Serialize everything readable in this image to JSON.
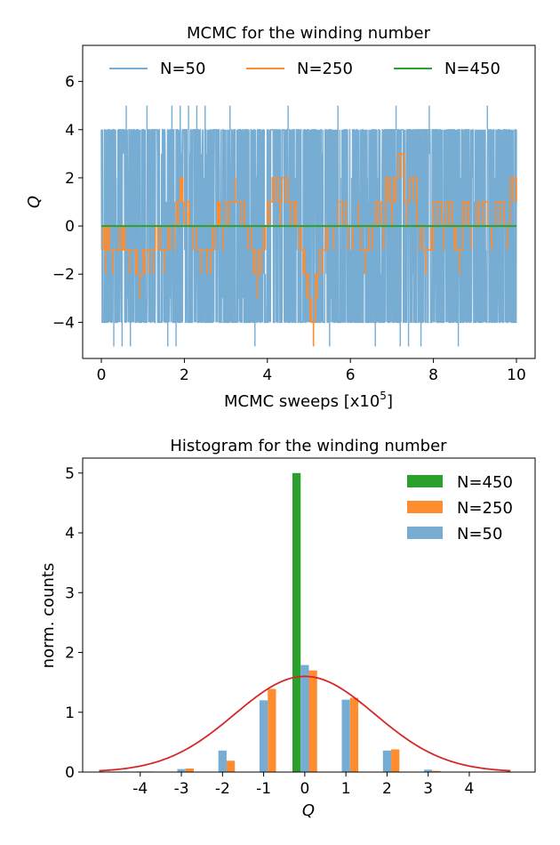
{
  "chart_data": [
    {
      "type": "line",
      "title": "MCMC for the winding number",
      "xlabel": "MCMC sweeps [x10^5]",
      "xlabel_text": "MCMC sweeps [x10",
      "xlabel_exp": "5",
      "xlabel_close": "]",
      "ylabel": "Q",
      "xlim": [
        -0.45,
        10.45
      ],
      "ylim": [
        -5.5,
        7.5
      ],
      "xticks": [
        0,
        2,
        4,
        6,
        8,
        10
      ],
      "xtick_labels": [
        "0",
        "2",
        "4",
        "6",
        "8",
        "10"
      ],
      "yticks": [
        -4,
        -2,
        0,
        2,
        4,
        6
      ],
      "ytick_labels": [
        "−4",
        "−2",
        "0",
        "2",
        "4",
        "6"
      ],
      "legend_position": "top (horizontal)",
      "series": [
        {
          "name": "N=50",
          "color": "#77acd3",
          "range": [
            -3,
            4
          ],
          "spikes_high": [
            0.6,
            1.1,
            1.7,
            1.9,
            2.1,
            2.3,
            2.5,
            3.1,
            4.5,
            5.7,
            7.1,
            7.9,
            9.3
          ],
          "spikes_low": [
            0.3,
            0.5,
            0.7,
            1.6,
            1.8,
            3.7,
            5.5,
            6.6,
            7.2,
            7.4,
            7.7,
            8.6
          ]
        },
        {
          "name": "N=250",
          "color": "#ff8c2e",
          "x": [
            0,
            0.08,
            0.12,
            0.2,
            0.5,
            0.56,
            0.8,
            0.86,
            1.0,
            1.1,
            1.2,
            1.3,
            1.42,
            1.6,
            1.72,
            1.8,
            1.9,
            1.96,
            2.02,
            2.12,
            2.3,
            2.5,
            2.6,
            2.68,
            2.8,
            2.86,
            3.0,
            3.3,
            3.45,
            3.62,
            3.72,
            3.8,
            3.9,
            4.0,
            4.12,
            4.25,
            4.35,
            4.5,
            4.6,
            4.7,
            4.82,
            4.9,
            5.0,
            5.06,
            5.16,
            5.26,
            5.4,
            5.5,
            5.7,
            5.9,
            6.0,
            6.25,
            6.45,
            6.6,
            6.75,
            6.85,
            6.95,
            7.05,
            7.15,
            7.3,
            7.42,
            7.6,
            7.75,
            8.0,
            8.2,
            8.3,
            8.45,
            8.55,
            8.7,
            8.85,
            9.1,
            9.3,
            9.5,
            9.7,
            9.85,
            10
          ],
          "y": [
            0,
            -1,
            0,
            -1,
            0,
            -1,
            -1,
            -2,
            -1,
            -1,
            -1,
            0,
            -1,
            0,
            0,
            1,
            2,
            1,
            1,
            0,
            -1,
            -1,
            -1,
            0,
            1,
            0,
            1,
            1,
            0,
            -1,
            -2,
            -1,
            0,
            1,
            2,
            1,
            2,
            1,
            1,
            0,
            -1,
            -2,
            -3,
            -4,
            -2,
            -1,
            0,
            0,
            1,
            0,
            0,
            -1,
            0,
            1,
            0,
            2,
            1,
            2,
            3,
            1,
            2,
            0,
            -1,
            1,
            0,
            1,
            0,
            -1,
            1,
            0,
            1,
            0,
            1,
            0,
            2,
            1
          ]
        },
        {
          "name": "N=450",
          "color": "#2ca02c",
          "x": [
            0,
            10
          ],
          "y": [
            0,
            0
          ]
        }
      ]
    },
    {
      "type": "bar",
      "title": "Histogram for the winding number",
      "xlabel": "Q",
      "ylabel": "norm. counts",
      "xlim": [
        -5.4,
        5.6
      ],
      "ylim": [
        0,
        5.25
      ],
      "xticks": [
        -4,
        -3,
        -2,
        -1,
        0,
        1,
        2,
        3,
        4
      ],
      "xtick_labels": [
        "-4",
        "-3",
        "-2",
        "-1",
        "0",
        "1",
        "2",
        "3",
        "4"
      ],
      "yticks": [
        0,
        1,
        2,
        3,
        4,
        5
      ],
      "ytick_labels": [
        "0",
        "1",
        "2",
        "3",
        "4",
        "5"
      ],
      "legend_position": "upper right",
      "categories": [
        -4,
        -3,
        -2,
        -1,
        0,
        1,
        2,
        3,
        4
      ],
      "series": [
        {
          "name": "N=450",
          "color": "#2ca02c",
          "values": [
            0,
            0,
            0,
            0,
            5.0,
            0,
            0,
            0,
            0
          ]
        },
        {
          "name": "N=250",
          "color": "#ff8c2e",
          "values": [
            0.01,
            0.06,
            0.19,
            1.39,
            1.7,
            1.24,
            0.38,
            0.02,
            0
          ]
        },
        {
          "name": "N=50",
          "color": "#77acd3",
          "values": [
            0.01,
            0.05,
            0.36,
            1.2,
            1.79,
            1.21,
            0.36,
            0.04,
            0
          ]
        }
      ],
      "gaussian": {
        "color": "#d62728",
        "peak": 1.6,
        "sigma": 1.7,
        "x_range": [
          -5,
          5
        ]
      }
    }
  ]
}
